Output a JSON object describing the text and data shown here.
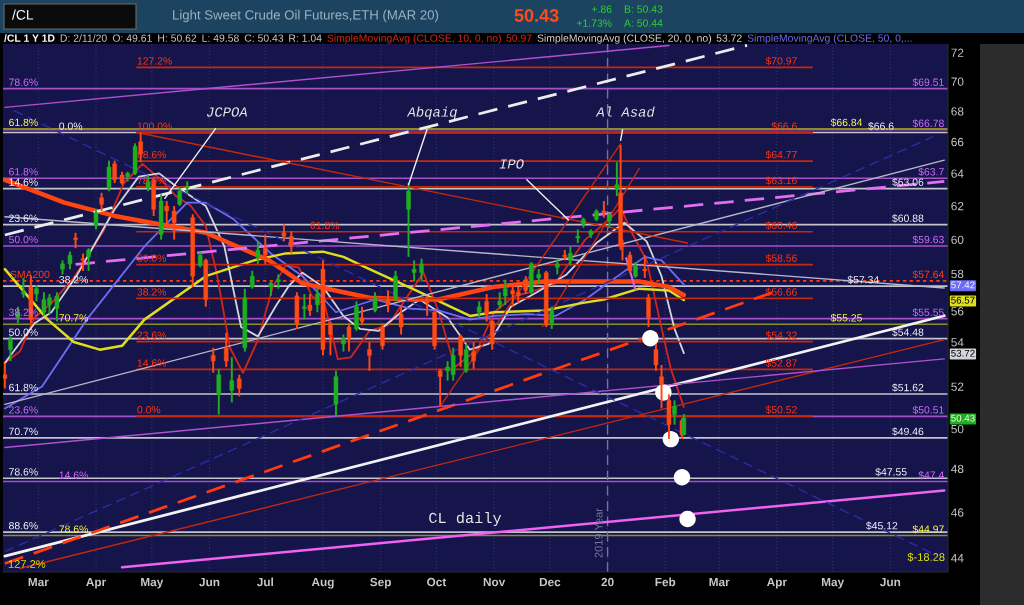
{
  "chart_data": {
    "type": "candlestick",
    "title": "Light Sweet Crude Oil Futures,ETH (MAR 20)",
    "subtitle": "/CL 1 Y 1D",
    "log": true,
    "grid": "x",
    "legend": "top",
    "xlim": [
      "2019-02-10",
      "2020-07-02"
    ],
    "ylim": [
      43.4,
      72.6
    ],
    "xticks": [
      {
        "value": "2019-03-01",
        "label": "Mar"
      },
      {
        "value": "2019-04-01",
        "label": "Apr"
      },
      {
        "value": "2019-05-01",
        "label": "May"
      },
      {
        "value": "2019-06-01",
        "label": "Jun"
      },
      {
        "value": "2019-07-01",
        "label": "Jul"
      },
      {
        "value": "2019-08-01",
        "label": "Aug"
      },
      {
        "value": "2019-09-01",
        "label": "Sep"
      },
      {
        "value": "2019-10-01",
        "label": "Oct"
      },
      {
        "value": "2019-11-01",
        "label": "Nov"
      },
      {
        "value": "2019-12-01",
        "label": "Dec"
      },
      {
        "value": "2020-01-01",
        "label": "20"
      },
      {
        "value": "2020-02-01",
        "label": "Feb"
      },
      {
        "value": "2020-03-01",
        "label": "Mar"
      },
      {
        "value": "2020-04-01",
        "label": "Apr"
      },
      {
        "value": "2020-05-01",
        "label": "May"
      },
      {
        "value": "2020-06-01",
        "label": "Jun"
      }
    ],
    "yticks": [
      44,
      46,
      48,
      50,
      50.43,
      52,
      53.72,
      54,
      56,
      56.57,
      57.42,
      58,
      60,
      62,
      64,
      66,
      68,
      70,
      72
    ],
    "x": [
      "2019-02-11",
      "2019-02-14",
      "2019-02-18",
      "2019-02-21",
      "2019-02-25",
      "2019-02-28",
      "2019-03-04",
      "2019-03-07",
      "2019-03-11",
      "2019-03-14",
      "2019-03-18",
      "2019-03-21",
      "2019-03-25",
      "2019-03-28",
      "2019-04-01",
      "2019-04-04",
      "2019-04-08",
      "2019-04-11",
      "2019-04-15",
      "2019-04-18",
      "2019-04-22",
      "2019-04-25",
      "2019-04-29",
      "2019-05-02",
      "2019-05-06",
      "2019-05-09",
      "2019-05-13",
      "2019-05-16",
      "2019-05-20",
      "2019-05-23",
      "2019-05-27",
      "2019-05-30",
      "2019-06-03",
      "2019-06-06",
      "2019-06-10",
      "2019-06-13",
      "2019-06-17",
      "2019-06-20",
      "2019-06-24",
      "2019-06-27",
      "2019-07-01",
      "2019-07-04",
      "2019-07-08",
      "2019-07-11",
      "2019-07-15",
      "2019-07-18",
      "2019-07-22",
      "2019-07-25",
      "2019-07-29",
      "2019-08-01",
      "2019-08-05",
      "2019-08-08",
      "2019-08-12",
      "2019-08-15",
      "2019-08-19",
      "2019-08-22",
      "2019-08-26",
      "2019-08-29",
      "2019-09-02",
      "2019-09-05",
      "2019-09-09",
      "2019-09-12",
      "2019-09-16",
      "2019-09-19",
      "2019-09-23",
      "2019-09-26",
      "2019-09-30",
      "2019-10-03",
      "2019-10-07",
      "2019-10-10",
      "2019-10-14",
      "2019-10-17",
      "2019-10-21",
      "2019-10-24",
      "2019-10-28",
      "2019-10-31",
      "2019-11-04",
      "2019-11-07",
      "2019-11-11",
      "2019-11-14",
      "2019-11-18",
      "2019-11-21",
      "2019-11-25",
      "2019-11-29",
      "2019-12-02",
      "2019-12-05",
      "2019-12-09",
      "2019-12-12",
      "2019-12-16",
      "2019-12-19",
      "2019-12-23",
      "2019-12-26",
      "2019-12-30",
      "2020-01-02",
      "2020-01-06",
      "2020-01-08",
      "2020-01-09",
      "2020-01-13",
      "2020-01-16",
      "2020-01-21",
      "2020-01-23",
      "2020-01-27",
      "2020-01-30",
      "2020-02-03",
      "2020-02-06",
      "2020-02-10",
      "2020-02-11"
    ],
    "ohlc": [
      [
        52.6,
        53.2,
        51.9,
        52.4
      ],
      [
        53.9,
        54.6,
        53.3,
        54.4
      ],
      [
        55.6,
        56.2,
        55.3,
        55.9
      ],
      [
        56.9,
        57.8,
        56.7,
        57.0
      ],
      [
        57.3,
        57.9,
        55.3,
        55.5
      ],
      [
        56.9,
        57.4,
        56.5,
        57.2
      ],
      [
        55.9,
        57.0,
        55.7,
        56.6
      ],
      [
        56.3,
        56.9,
        55.8,
        56.7
      ],
      [
        56.1,
        57.0,
        55.4,
        56.8
      ],
      [
        58.3,
        58.8,
        58.0,
        58.6
      ],
      [
        58.6,
        59.3,
        58.3,
        59.1
      ],
      [
        60.1,
        60.4,
        59.5,
        60.0
      ],
      [
        58.9,
        59.2,
        58.2,
        58.8
      ],
      [
        59.0,
        59.5,
        58.2,
        59.4
      ],
      [
        60.8,
        61.8,
        60.6,
        61.6
      ],
      [
        62.5,
        62.8,
        61.7,
        62.1
      ],
      [
        63.1,
        64.8,
        62.9,
        64.4
      ],
      [
        64.6,
        64.8,
        63.4,
        63.6
      ],
      [
        63.9,
        64.1,
        63.3,
        63.4
      ],
      [
        63.8,
        64.1,
        63.5,
        64.0
      ],
      [
        64.0,
        65.9,
        63.9,
        65.7
      ],
      [
        66.0,
        66.6,
        64.7,
        65.2
      ],
      [
        63.1,
        63.9,
        62.9,
        63.5
      ],
      [
        63.6,
        63.8,
        61.4,
        61.8
      ],
      [
        60.3,
        62.7,
        60.0,
        62.3
      ],
      [
        62.0,
        62.3,
        60.7,
        61.7
      ],
      [
        61.7,
        62.0,
        60.0,
        61.0
      ],
      [
        62.1,
        63.1,
        62.0,
        62.9
      ],
      [
        63.1,
        63.5,
        62.8,
        63.2
      ],
      [
        61.3,
        61.5,
        57.3,
        57.9
      ],
      [
        58.5,
        59.3,
        58.4,
        59.1
      ],
      [
        58.8,
        58.9,
        56.2,
        56.6
      ],
      [
        53.6,
        54.0,
        52.7,
        53.3
      ],
      [
        51.6,
        52.9,
        50.6,
        52.6
      ],
      [
        54.0,
        54.8,
        53.0,
        53.3
      ],
      [
        51.8,
        53.5,
        51.2,
        52.3
      ],
      [
        52.4,
        52.6,
        51.5,
        51.9
      ],
      [
        54.0,
        57.2,
        53.8,
        56.7
      ],
      [
        57.3,
        58.2,
        57.2,
        57.9
      ],
      [
        59.0,
        59.9,
        58.6,
        59.4
      ],
      [
        59.5,
        60.3,
        58.6,
        59.1
      ],
      [
        57.3,
        57.6,
        56.8,
        57.5
      ],
      [
        57.6,
        58.0,
        57.2,
        57.7
      ],
      [
        60.4,
        60.9,
        59.9,
        60.2
      ],
      [
        60.2,
        60.5,
        59.2,
        59.6
      ],
      [
        56.8,
        57.0,
        55.0,
        55.3
      ],
      [
        56.1,
        56.9,
        55.5,
        56.2
      ],
      [
        56.3,
        56.9,
        55.7,
        56.0
      ],
      [
        56.3,
        57.2,
        55.9,
        56.9
      ],
      [
        58.3,
        58.8,
        53.6,
        53.9
      ],
      [
        55.3,
        55.4,
        53.6,
        54.7
      ],
      [
        51.1,
        52.8,
        50.5,
        52.5
      ],
      [
        54.2,
        54.7,
        53.8,
        54.5
      ],
      [
        55.1,
        55.3,
        53.8,
        54.5
      ],
      [
        55.0,
        56.5,
        54.9,
        56.2
      ],
      [
        55.6,
        56.2,
        55.2,
        55.4
      ],
      [
        53.9,
        54.3,
        52.8,
        53.6
      ],
      [
        56.0,
        57.0,
        55.9,
        56.7
      ],
      [
        55.1,
        55.3,
        53.9,
        54.1
      ],
      [
        56.6,
        57.1,
        55.9,
        56.3
      ],
      [
        56.6,
        58.2,
        56.5,
        57.9
      ],
      [
        55.8,
        56.3,
        54.7,
        55.1
      ],
      [
        61.8,
        63.4,
        59.0,
        62.9
      ],
      [
        58.1,
        58.8,
        57.6,
        58.3
      ],
      [
        58.1,
        58.9,
        57.6,
        58.6
      ],
      [
        56.5,
        56.8,
        55.7,
        56.4
      ],
      [
        55.9,
        56.0,
        53.9,
        54.1
      ],
      [
        52.8,
        52.9,
        51.0,
        52.5
      ],
      [
        52.8,
        53.3,
        52.3,
        53.0
      ],
      [
        52.6,
        54.0,
        52.3,
        53.6
      ],
      [
        54.6,
        54.7,
        53.0,
        53.6
      ],
      [
        52.8,
        54.2,
        52.7,
        53.9
      ],
      [
        53.8,
        54.3,
        52.9,
        53.3
      ],
      [
        55.9,
        56.5,
        55.6,
        56.2
      ],
      [
        56.5,
        56.9,
        55.4,
        55.8
      ],
      [
        55.4,
        55.5,
        53.9,
        54.2
      ],
      [
        56.3,
        57.0,
        56.1,
        56.5
      ],
      [
        56.8,
        57.7,
        56.3,
        57.2
      ],
      [
        57.1,
        57.3,
        56.2,
        56.9
      ],
      [
        57.0,
        57.3,
        56.4,
        56.8
      ],
      [
        57.7,
        57.9,
        56.9,
        57.1
      ],
      [
        57.0,
        58.7,
        56.9,
        58.6
      ],
      [
        57.8,
        58.3,
        57.5,
        58.0
      ],
      [
        58.1,
        58.2,
        55.1,
        55.2
      ],
      [
        55.3,
        56.2,
        55.0,
        56.0
      ],
      [
        58.4,
        58.9,
        58.0,
        58.6
      ],
      [
        59.1,
        59.4,
        58.8,
        59.0
      ],
      [
        58.8,
        59.6,
        58.5,
        59.2
      ],
      [
        60.1,
        60.6,
        59.8,
        60.2
      ],
      [
        60.9,
        61.3,
        60.7,
        61.2
      ],
      [
        60.3,
        60.6,
        60.1,
        60.5
      ],
      [
        61.2,
        61.8,
        61.1,
        61.7
      ],
      [
        61.7,
        62.3,
        61.3,
        61.6
      ],
      [
        61.1,
        61.6,
        60.7,
        61.5
      ],
      [
        63.0,
        64.7,
        62.6,
        63.3
      ],
      [
        62.8,
        65.8,
        59.4,
        59.6
      ],
      [
        59.7,
        60.0,
        58.8,
        59.6
      ],
      [
        59.1,
        59.3,
        58.1,
        58.2
      ],
      [
        57.9,
        58.7,
        57.8,
        58.5
      ],
      [
        58.3,
        59.1,
        57.8,
        58.2
      ],
      [
        56.7,
        56.9,
        55.1,
        55.6
      ],
      [
        53.9,
        54.2,
        52.8,
        53.1
      ],
      [
        52.5,
        53.1,
        50.9,
        52.1
      ],
      [
        51.3,
        51.6,
        49.4,
        50.1
      ],
      [
        50.6,
        51.3,
        50.1,
        51.0
      ],
      [
        50.3,
        50.4,
        49.4,
        49.6
      ],
      [
        49.61,
        50.62,
        49.58,
        50.43
      ]
    ],
    "series": [
      {
        "type": "line",
        "name": "SimpleMovingAvg (CLOSE, 10, 0, no)",
        "color": "#d2261c",
        "x": [
          "2019-02-11",
          "2019-02-19",
          "2019-02-27",
          "2019-03-08",
          "2019-03-20",
          "2019-04-05",
          "2019-04-16",
          "2019-04-26",
          "2019-05-06",
          "2019-05-14",
          "2019-05-22",
          "2019-05-30",
          "2019-06-05",
          "2019-06-12",
          "2019-06-19",
          "2019-06-27",
          "2019-07-05",
          "2019-07-12",
          "2019-07-19",
          "2019-07-26",
          "2019-08-02",
          "2019-08-09",
          "2019-08-16",
          "2019-08-26",
          "2019-09-05",
          "2019-09-13",
          "2019-09-24",
          "2019-10-02",
          "2019-10-11",
          "2019-10-23",
          "2019-11-01",
          "2019-11-12",
          "2019-11-20",
          "2019-12-04",
          "2019-12-13",
          "2019-12-20",
          "2020-01-02",
          "2020-01-08",
          "2020-01-14",
          "2020-01-22",
          "2020-01-29",
          "2020-02-04",
          "2020-02-11"
        ],
        "values": [
          53.2,
          53.8,
          55.6,
          56.4,
          57.8,
          60.5,
          63.4,
          64.6,
          63.6,
          62.6,
          62.0,
          60.8,
          58.0,
          54.0,
          52.7,
          54.4,
          57.3,
          58.5,
          58.4,
          56.8,
          56.3,
          53.4,
          53.5,
          54.9,
          55.2,
          56.4,
          58.1,
          56.0,
          53.0,
          53.9,
          55.9,
          56.8,
          57.0,
          57.5,
          58.9,
          60.0,
          61.2,
          61.9,
          60.4,
          58.8,
          55.5,
          52.9,
          50.97
        ]
      },
      {
        "type": "line",
        "name": "SimpleMovingAvg (CLOSE, 20, 0, no)",
        "color": "#d4d4dc",
        "x": [
          "2019-02-11",
          "2019-02-27",
          "2019-03-08",
          "2019-03-22",
          "2019-04-11",
          "2019-04-24",
          "2019-05-05",
          "2019-05-14",
          "2019-05-30",
          "2019-06-09",
          "2019-06-18",
          "2019-06-27",
          "2019-07-07",
          "2019-07-14",
          "2019-07-21",
          "2019-08-01",
          "2019-08-12",
          "2019-08-21",
          "2019-08-31",
          "2019-09-12",
          "2019-09-22",
          "2019-10-07",
          "2019-10-19",
          "2019-10-29",
          "2019-11-10",
          "2019-11-24",
          "2019-12-10",
          "2019-12-26",
          "2020-01-10",
          "2020-01-22",
          "2020-01-30",
          "2020-02-06",
          "2020-02-11"
        ],
        "values": [
          53.2,
          55.3,
          55.9,
          58.0,
          61.8,
          63.8,
          64.0,
          63.2,
          62.0,
          59.6,
          55.1,
          54.6,
          56.3,
          57.4,
          58.1,
          57.3,
          55.7,
          55.0,
          54.9,
          55.9,
          56.6,
          55.6,
          53.9,
          54.2,
          56.2,
          57.0,
          58.0,
          59.8,
          61.0,
          59.9,
          57.9,
          55.0,
          53.72
        ]
      },
      {
        "type": "line",
        "name": "SimpleMovingAvg (CLOSE, 50, 0,...",
        "color": "#6c6cf4",
        "x": [
          "2019-02-11",
          "2019-03-03",
          "2019-03-27",
          "2019-04-27",
          "2019-05-20",
          "2019-05-30",
          "2019-06-14",
          "2019-07-04",
          "2019-07-21",
          "2019-08-08",
          "2019-08-29",
          "2019-09-17",
          "2019-10-02",
          "2019-10-19",
          "2019-11-01",
          "2019-11-19",
          "2019-12-04",
          "2019-12-20",
          "2020-01-09",
          "2020-01-21",
          "2020-01-30",
          "2020-02-11"
        ],
        "values": [
          50.9,
          52.0,
          55.5,
          59.6,
          62.2,
          62.2,
          61.2,
          59.2,
          57.9,
          55.9,
          56.6,
          56.1,
          56.0,
          55.5,
          55.7,
          55.8,
          55.7,
          56.6,
          58.1,
          59.0,
          58.8,
          57.42
        ]
      },
      {
        "type": "line",
        "color": "#dede1e",
        "x": [
          "2019-02-11",
          "2019-03-06",
          "2019-03-20",
          "2019-04-03",
          "2019-04-15",
          "2019-04-27",
          "2019-05-30",
          "2019-06-25",
          "2019-07-12",
          "2019-08-01",
          "2019-08-12",
          "2019-08-26",
          "2019-09-20",
          "2019-10-19",
          "2019-11-01",
          "2019-11-28",
          "2019-12-18",
          "2019-12-30",
          "2020-01-18",
          "2020-02-03",
          "2020-02-11"
        ],
        "values": [
          58.3,
          55.5,
          54.3,
          53.9,
          54.1,
          55.5,
          57.9,
          58.8,
          59.2,
          59.3,
          59.0,
          58.3,
          57.1,
          55.7,
          55.9,
          56.0,
          56.4,
          56.6,
          57.2,
          57.1,
          56.57
        ]
      },
      {
        "type": "line",
        "color": "#ff4512",
        "x": [
          "2019-02-11",
          "2019-03-15",
          "2019-04-11",
          "2019-05-30",
          "2019-07-03",
          "2019-07-21",
          "2019-08-12",
          "2019-08-26",
          "2019-09-17",
          "2019-10-02",
          "2019-11-01",
          "2019-11-28",
          "2019-12-30",
          "2020-01-18",
          "2020-02-03",
          "2020-02-11"
        ],
        "values": [
          63.6,
          62.2,
          61.4,
          60.4,
          58.8,
          57.5,
          57.0,
          56.7,
          56.6,
          56.6,
          57.3,
          57.6,
          57.6,
          57.6,
          57.3,
          56.85
        ]
      },
      {
        "type": "line",
        "color": "#c8280c",
        "x": [
          "2019-04-23",
          "2020-04-20"
        ],
        "values": [
          70.97,
          70.97
        ]
      },
      {
        "type": "line",
        "color": "#c8280c",
        "x": [
          "2019-04-23",
          "2020-04-20"
        ],
        "values": [
          66.6,
          66.6
        ]
      },
      {
        "type": "line",
        "color": "#c8280c",
        "x": [
          "2019-04-23",
          "2020-04-20"
        ],
        "values": [
          64.77,
          64.77
        ]
      },
      {
        "type": "line",
        "color": "#c8280c",
        "x": [
          "2019-04-23",
          "2020-04-20"
        ],
        "values": [
          63.16,
          63.16
        ]
      },
      {
        "type": "line",
        "color": "#c8280c",
        "x": [
          "2019-04-23",
          "2020-04-20"
        ],
        "values": [
          60.46,
          60.46
        ]
      },
      {
        "type": "line",
        "color": "#c8280c",
        "x": [
          "2019-04-23",
          "2020-04-20"
        ],
        "values": [
          58.56,
          58.56
        ]
      },
      {
        "type": "line",
        "color": "#c8280c",
        "x": [
          "2019-04-23",
          "2020-04-20"
        ],
        "values": [
          56.66,
          56.66
        ]
      },
      {
        "type": "line",
        "color": "#c8280c",
        "x": [
          "2019-04-23",
          "2020-04-20"
        ],
        "values": [
          54.32,
          54.32
        ]
      },
      {
        "type": "line",
        "color": "#c8280c",
        "x": [
          "2019-04-23",
          "2020-04-20"
        ],
        "values": [
          52.87,
          52.87
        ]
      },
      {
        "type": "line",
        "color": "#c8280c",
        "x": [
          "2019-04-23",
          "2020-04-20"
        ],
        "values": [
          50.52,
          50.52
        ]
      },
      {
        "type": "line",
        "color": "#ececec",
        "line_style": "dashed",
        "x": [
          "2019-02-11",
          "2020-03-16"
        ],
        "values": [
          60.27,
          72.5
        ]
      },
      {
        "type": "line",
        "color": "#e46ef2",
        "line_style": "dashed",
        "x": [
          "2019-03-21",
          "2020-06-30"
        ],
        "values": [
          58.57,
          63.5
        ]
      },
      {
        "type": "line",
        "color": "#f2f2f2",
        "x": [
          "2019-02-11",
          "2020-06-30"
        ],
        "values": [
          44.08,
          55.71
        ]
      },
      {
        "type": "line",
        "color": "#ff3a10",
        "line_style": "dashed",
        "x": [
          "2019-02-11",
          "2020-03-30"
        ],
        "values": [
          43.76,
          57.0
        ]
      },
      {
        "type": "line",
        "color": "#c02810",
        "x": [
          "2019-02-19",
          "2020-06-30"
        ],
        "values": [
          43.55,
          54.43
        ]
      },
      {
        "type": "line",
        "color": "#f062f0",
        "x": [
          "2019-04-15",
          "2020-06-30"
        ],
        "values": [
          43.6,
          46.99
        ]
      },
      {
        "type": "line",
        "color": "#b050d0",
        "x": [
          "2019-02-11",
          "2020-02-03"
        ],
        "values": [
          68.25,
          72.49
        ]
      },
      {
        "type": "line",
        "color": "#b050d0",
        "x": [
          "2019-02-11",
          "2020-06-30"
        ],
        "values": [
          49.0,
          53.42
        ]
      },
      {
        "type": "line",
        "color": "#b8b8c8",
        "x": [
          "2019-02-11",
          "2020-06-30"
        ],
        "values": [
          51.1,
          64.83
        ]
      },
      {
        "type": "line",
        "color": "#b8b8c8",
        "x": [
          "2019-02-11",
          "2020-06-30"
        ],
        "values": [
          61.35,
          57.24
        ]
      },
      {
        "type": "line",
        "color": "#c8280c",
        "x": [
          "2019-04-23",
          "2020-02-13"
        ],
        "values": [
          66.6,
          59.8
        ]
      },
      {
        "type": "line",
        "color": "#2c2ca4",
        "line_style": "dashed",
        "x": [
          "2019-02-16",
          "2020-06-26"
        ],
        "values": [
          68.03,
          44.1
        ]
      },
      {
        "type": "line",
        "color": "#2c2ca4",
        "line_style": "dashed",
        "x": [
          "2019-02-11",
          "2020-06-24"
        ],
        "values": [
          44.27,
          66.33
        ]
      },
      {
        "type": "line",
        "color": "#c8280c",
        "x": [
          "2019-10-03",
          "2020-01-08"
        ],
        "values": [
          51.0,
          65.87
        ]
      },
      {
        "type": "line",
        "color": "#c8280c",
        "x": [
          "2019-11-27",
          "2020-01-18"
        ],
        "values": [
          55.13,
          64.3
        ]
      },
      {
        "type": "line",
        "color": "#e060e0",
        "x": [
          "2020-01-11",
          "2020-01-16"
        ],
        "values": [
          58.93,
          57.14
        ]
      },
      {
        "type": "scatter",
        "color": "#ffffff",
        "marker": "circle",
        "x": [
          "2020-01-24",
          "2020-01-31",
          "2020-02-04",
          "2020-02-10",
          "2020-02-13"
        ],
        "values": [
          54.5,
          51.7,
          49.4,
          47.6,
          45.7
        ]
      }
    ],
    "ref_lines": [
      {
        "axis": "y",
        "value": 66.6,
        "color": "#c4c4cc"
      },
      {
        "axis": "y",
        "value": 63.06,
        "color": "#c4c4cc"
      },
      {
        "axis": "y",
        "value": 60.88,
        "color": "#c4c4cc"
      },
      {
        "axis": "y",
        "value": 57.34,
        "color": "#c4c4cc"
      },
      {
        "axis": "y",
        "value": 54.48,
        "color": "#c4c4cc"
      },
      {
        "axis": "y",
        "value": 51.62,
        "color": "#c4c4cc"
      },
      {
        "axis": "y",
        "value": 49.46,
        "color": "#c4c4cc"
      },
      {
        "axis": "y",
        "value": 47.55,
        "color": "#c4c4cc"
      },
      {
        "axis": "y",
        "value": 45.12,
        "color": "#c4c4cc"
      },
      {
        "axis": "y",
        "value": 69.51,
        "color": "#a452c8"
      },
      {
        "axis": "y",
        "value": 66.78,
        "color": "#a452c8"
      },
      {
        "axis": "y",
        "value": 63.7,
        "color": "#a452c8"
      },
      {
        "axis": "y",
        "value": 59.63,
        "color": "#a452c8"
      },
      {
        "axis": "y",
        "value": 55.55,
        "color": "#a452c8"
      },
      {
        "axis": "y",
        "value": 50.51,
        "color": "#a452c8"
      },
      {
        "axis": "y",
        "value": 47.4,
        "color": "#a452c8"
      },
      {
        "axis": "y",
        "value": 66.84,
        "color": "#8e8e24"
      },
      {
        "axis": "y",
        "value": 55.25,
        "color": "#8e8e24"
      },
      {
        "axis": "y",
        "value": 44.97,
        "color": "#8e8e24"
      },
      {
        "axis": "y",
        "value": 57.64,
        "label": "SMA200",
        "color": "#ff3c10",
        "line_style": "dotted"
      },
      {
        "axis": "x",
        "value": "2020-01-01",
        "label": "2019 Year",
        "color": "#74749a",
        "line_style": "dashed"
      }
    ],
    "annotations": [
      "/CL",
      "50.43",
      "+.86",
      "+1.73%",
      "B: 50.43",
      "A: 50.44",
      "D: 2/11/20",
      "O: 49.61",
      "H: 50.62",
      "L: 49.58",
      "C: 50.43",
      "R: 1.04",
      "50.97",
      "53.72",
      "CL daily",
      "127.2%",
      "$-18.28",
      {
        "text": "JCPOA",
        "x": "2019-05-08",
        "y": 62.46
      },
      {
        "text": "Abqaiq",
        "x": "2019-09-16",
        "y": 63.3
      },
      {
        "text": "IPO",
        "x": "2019-12-11",
        "y": 61.16
      },
      {
        "text": "Al Asad",
        "x": "2020-01-08",
        "y": 66.1
      },
      {
        "text": "0.0%",
        "x": "2019-03-12",
        "y": 66.6
      },
      {
        "text": "$66.6",
        "x": "2020-06-03",
        "y": 66.6
      },
      {
        "text": "14.6%",
        "x": "2019-02-13",
        "y": 63.06
      },
      {
        "text": "$63.06",
        "x": "2020-06-19",
        "y": 63.06
      },
      {
        "text": "23.6%",
        "x": "2019-02-13",
        "y": 60.88
      },
      {
        "text": "$60.88",
        "x": "2020-06-19",
        "y": 60.88
      },
      {
        "text": "38.2%",
        "x": "2019-03-12",
        "y": 57.34
      },
      {
        "text": "$57.34",
        "x": "2020-05-26",
        "y": 57.34
      },
      {
        "text": "50.0%",
        "x": "2019-02-13",
        "y": 54.48
      },
      {
        "text": "$54.48",
        "x": "2020-06-19",
        "y": 54.48
      },
      {
        "text": "61.8%",
        "x": "2019-02-13",
        "y": 51.62
      },
      {
        "text": "$51.62",
        "x": "2020-06-19",
        "y": 51.62
      },
      {
        "text": "70.7%",
        "x": "2019-02-13",
        "y": 49.46
      },
      {
        "text": "$49.46",
        "x": "2020-06-19",
        "y": 49.46
      },
      {
        "text": "78.6%",
        "x": "2019-02-13",
        "y": 47.55
      },
      {
        "text": "$47.55",
        "x": "2020-06-10",
        "y": 47.55
      },
      {
        "text": "88.6%",
        "x": "2019-02-13",
        "y": 45.12
      },
      {
        "text": "$45.12",
        "x": "2020-06-05",
        "y": 45.12
      },
      {
        "text": "78.6%",
        "x": "2019-02-13",
        "y": 69.51
      },
      {
        "text": "$69.51",
        "x": "2020-06-30",
        "y": 69.51
      },
      {
        "text": "$66.78",
        "x": "2020-06-30",
        "y": 66.78
      },
      {
        "text": "61.8%",
        "x": "2019-02-13",
        "y": 63.7
      },
      {
        "text": "$63.7",
        "x": "2020-06-30",
        "y": 63.7
      },
      {
        "text": "50.0%",
        "x": "2019-02-13",
        "y": 59.63
      },
      {
        "text": "$59.63",
        "x": "2020-06-30",
        "y": 59.63
      },
      {
        "text": "38.2%",
        "x": "2019-02-13",
        "y": 55.55
      },
      {
        "text": "$55.55",
        "x": "2020-06-30",
        "y": 55.55
      },
      {
        "text": "23.6%",
        "x": "2019-02-13",
        "y": 50.51
      },
      {
        "text": "$50.51",
        "x": "2020-06-30",
        "y": 50.51
      },
      {
        "text": "14.6%",
        "x": "2019-03-12",
        "y": 47.4
      },
      {
        "text": "$47.4",
        "x": "2020-06-30",
        "y": 47.4
      },
      {
        "text": "61.8%",
        "x": "2019-02-13",
        "y": 66.84
      },
      {
        "text": "$66.84",
        "x": "2020-05-17",
        "y": 66.84
      },
      {
        "text": "70.7%",
        "x": "2019-03-12",
        "y": 55.25
      },
      {
        "text": "$55.25",
        "x": "2020-05-17",
        "y": 55.25
      },
      {
        "text": "78.6%",
        "x": "2019-03-12",
        "y": 44.97
      },
      {
        "text": "$44.97",
        "x": "2020-06-30",
        "y": 44.97
      },
      {
        "text": "$57.64",
        "x": "2020-06-30",
        "y": 57.64
      },
      {
        "text": "127.2%",
        "x": "2019-04-23",
        "y": 70.97
      },
      {
        "text": "$70.97",
        "x": "2020-04-12",
        "y": 70.97
      },
      {
        "text": "100.0%",
        "x": "2019-04-23",
        "y": 66.6
      },
      {
        "text": "$66.6",
        "x": "2020-04-12",
        "y": 66.6
      },
      {
        "text": "88.6%",
        "x": "2019-04-23",
        "y": 64.77
      },
      {
        "text": "$64.77",
        "x": "2020-04-12",
        "y": 64.77
      },
      {
        "text": "78.6%",
        "x": "2019-04-23",
        "y": 63.16
      },
      {
        "text": "$63.16",
        "x": "2020-04-12",
        "y": 63.16
      },
      {
        "text": "61.8%",
        "x": "2019-07-25",
        "y": 60.46
      },
      {
        "text": "$60.46",
        "x": "2020-04-12",
        "y": 60.46
      },
      {
        "text": "50.0%",
        "x": "2019-04-23",
        "y": 58.56
      },
      {
        "text": "$58.56",
        "x": "2020-04-12",
        "y": 58.56
      },
      {
        "text": "38.2%",
        "x": "2019-04-23",
        "y": 56.66
      },
      {
        "text": "$56.66",
        "x": "2020-04-12",
        "y": 56.66
      },
      {
        "text": "23.6%",
        "x": "2019-04-23",
        "y": 54.32
      },
      {
        "text": "$54.32",
        "x": "2020-04-12",
        "y": 54.32
      },
      {
        "text": "14.6%",
        "x": "2019-04-23",
        "y": 52.87
      },
      {
        "text": "$52.87",
        "x": "2020-04-12",
        "y": 52.87
      },
      {
        "text": "0.0%",
        "x": "2019-04-23",
        "y": 50.52
      },
      {
        "text": "$50.52",
        "x": "2020-04-12",
        "y": 50.52
      }
    ]
  }
}
